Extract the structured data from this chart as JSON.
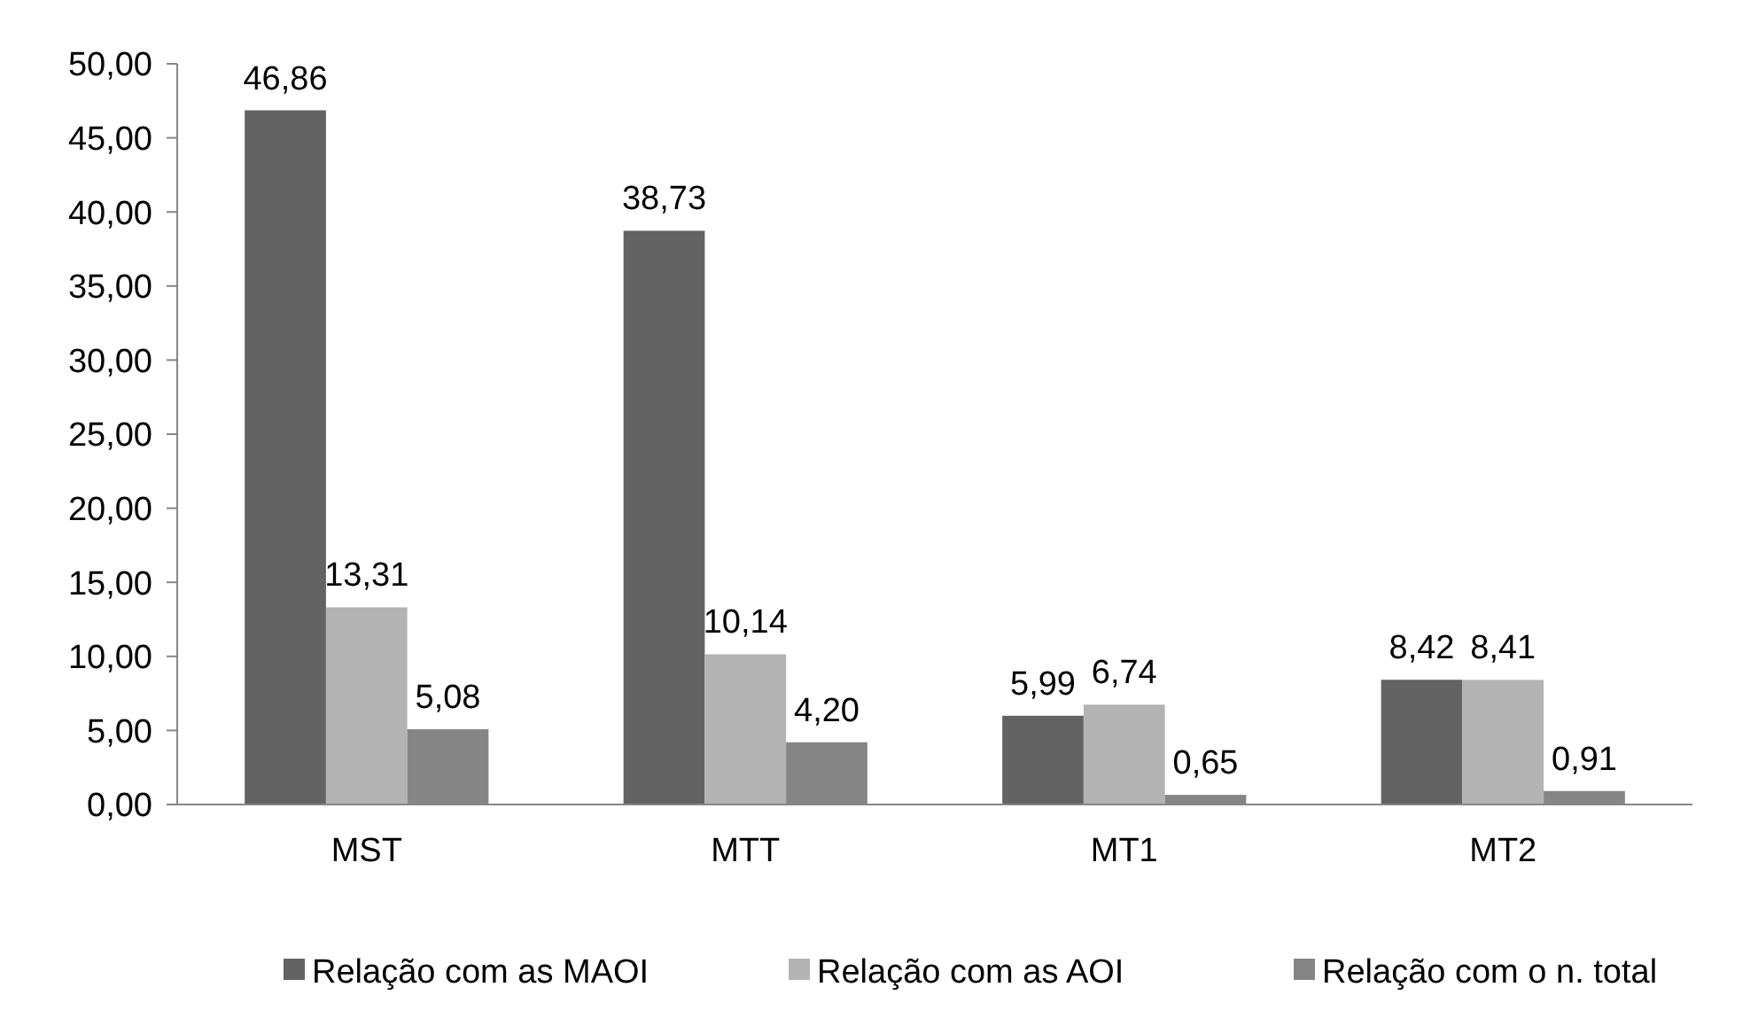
{
  "chart_data": {
    "type": "bar",
    "categories": [
      "MST",
      "MTT",
      "MT1",
      "MT2"
    ],
    "series": [
      {
        "name": "Relação com as MAOI",
        "color": "#636363",
        "values": [
          46.86,
          38.73,
          5.99,
          8.42
        ],
        "value_labels": [
          "46,86",
          "38,73",
          "5,99",
          "8,42"
        ]
      },
      {
        "name": "Relação com as AOI",
        "color": "#b3b3b3",
        "values": [
          13.31,
          10.14,
          6.74,
          8.41
        ],
        "value_labels": [
          "13,31",
          "10,14",
          "6,74",
          "8,41"
        ]
      },
      {
        "name": "Relação com o n. total",
        "color": "#858585",
        "values": [
          5.08,
          4.2,
          0.65,
          0.91
        ],
        "value_labels": [
          "5,08",
          "4,20",
          "0,65",
          "0,91"
        ]
      }
    ],
    "ylim": [
      0,
      50
    ],
    "yticks": [
      {
        "value": 0,
        "label": "0,00"
      },
      {
        "value": 5,
        "label": "5,00"
      },
      {
        "value": 10,
        "label": "10,00"
      },
      {
        "value": 15,
        "label": "15,00"
      },
      {
        "value": 20,
        "label": "20,00"
      },
      {
        "value": 25,
        "label": "25,00"
      },
      {
        "value": 30,
        "label": "30,00"
      },
      {
        "value": 35,
        "label": "35,00"
      },
      {
        "value": 40,
        "label": "40,00"
      },
      {
        "value": 45,
        "label": "45,00"
      },
      {
        "value": 50,
        "label": "50,00"
      }
    ],
    "grid": false,
    "legend": "bottom"
  }
}
